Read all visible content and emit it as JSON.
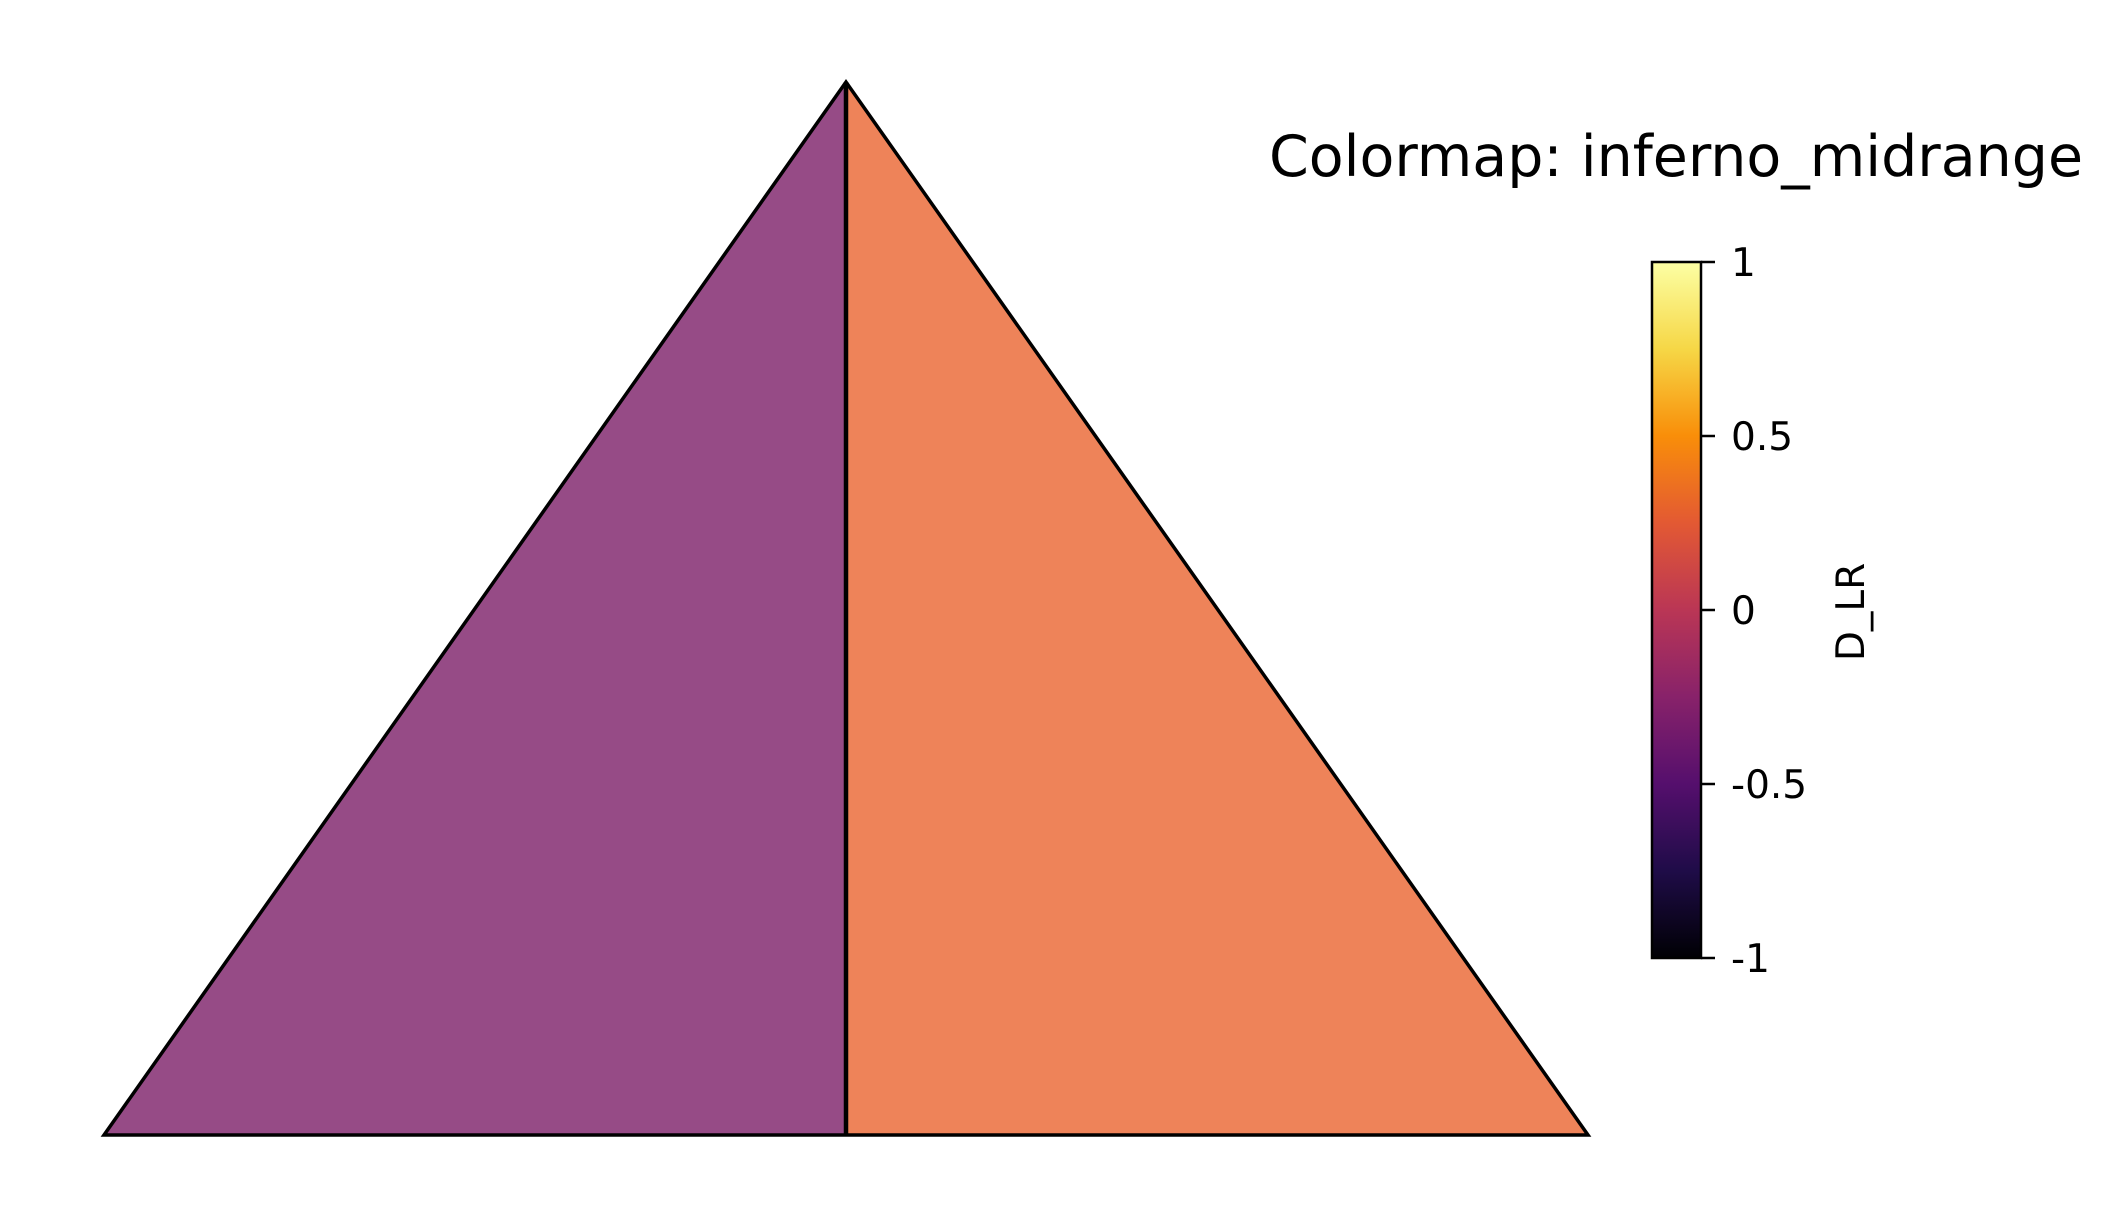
{
  "chart_data": {
    "type": "heatmap",
    "title": "Colormap: inferno_midrange",
    "regions": [
      {
        "side": "left",
        "value": -0.22,
        "color": "#964b86"
      },
      {
        "side": "right",
        "value": 0.52,
        "color": "#ee8359"
      }
    ],
    "colorbar": {
      "label": "D_LR",
      "range": [
        -1,
        1
      ],
      "ticks": [
        1,
        0.5,
        0,
        -0.5,
        -1
      ],
      "tick_labels": [
        "1",
        "0.5",
        "0",
        "-0.5",
        "-1"
      ],
      "stops": [
        {
          "value": -1,
          "color": "#000004"
        },
        {
          "value": -0.75,
          "color": "#1f0c48"
        },
        {
          "value": -0.5,
          "color": "#550f6d"
        },
        {
          "value": -0.25,
          "color": "#88226a"
        },
        {
          "value": 0,
          "color": "#ba3655"
        },
        {
          "value": 0.25,
          "color": "#e35933"
        },
        {
          "value": 0.5,
          "color": "#f98e09"
        },
        {
          "value": 0.75,
          "color": "#f6d746"
        },
        {
          "value": 1,
          "color": "#fcffa4"
        }
      ]
    }
  }
}
